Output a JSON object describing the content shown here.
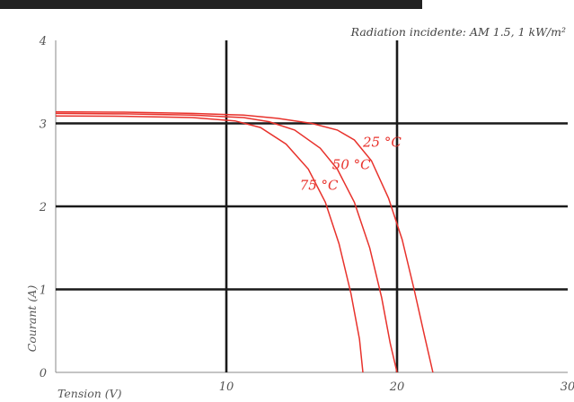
{
  "chart_data": {
    "type": "line",
    "title": "Radiation incidente: AM 1.5, 1 kW/m²",
    "xlabel": "Tension (V)",
    "ylabel": "Courant (A)",
    "xlim": [
      0,
      30
    ],
    "ylim": [
      0,
      4
    ],
    "x_ticks": [
      "10",
      "20",
      "30"
    ],
    "y_ticks": [
      "0",
      "1",
      "2",
      "3",
      "4"
    ],
    "grid": true,
    "colors": {
      "curve": "#e8322c",
      "grid": "#1a1a1a",
      "text": "#555555",
      "header_band": "#222222"
    },
    "series": [
      {
        "name": "25 °C",
        "label_pos": [
          18.0,
          2.72
        ],
        "points": [
          [
            0,
            3.14
          ],
          [
            4,
            3.135
          ],
          [
            8,
            3.12
          ],
          [
            11,
            3.1
          ],
          [
            13,
            3.06
          ],
          [
            15,
            3.0
          ],
          [
            16.5,
            2.92
          ],
          [
            17.5,
            2.8
          ],
          [
            18.5,
            2.55
          ],
          [
            19.5,
            2.1
          ],
          [
            20.3,
            1.6
          ],
          [
            21,
            1.0
          ],
          [
            21.6,
            0.45
          ],
          [
            22.1,
            0
          ]
        ]
      },
      {
        "name": "50 °C",
        "label_pos": [
          16.2,
          2.45
        ],
        "points": [
          [
            0,
            3.12
          ],
          [
            4,
            3.115
          ],
          [
            8,
            3.1
          ],
          [
            11,
            3.07
          ],
          [
            12.5,
            3.02
          ],
          [
            14,
            2.92
          ],
          [
            15.5,
            2.7
          ],
          [
            16.5,
            2.45
          ],
          [
            17.5,
            2.05
          ],
          [
            18.4,
            1.5
          ],
          [
            19.1,
            0.9
          ],
          [
            19.6,
            0.35
          ],
          [
            20.0,
            0
          ]
        ]
      },
      {
        "name": "75 °C",
        "label_pos": [
          14.3,
          2.2
        ],
        "points": [
          [
            0,
            3.09
          ],
          [
            4,
            3.085
          ],
          [
            8,
            3.07
          ],
          [
            10.5,
            3.03
          ],
          [
            12,
            2.95
          ],
          [
            13.5,
            2.75
          ],
          [
            14.8,
            2.45
          ],
          [
            15.8,
            2.05
          ],
          [
            16.6,
            1.55
          ],
          [
            17.3,
            0.95
          ],
          [
            17.8,
            0.4
          ],
          [
            18.0,
            0
          ]
        ]
      }
    ]
  }
}
